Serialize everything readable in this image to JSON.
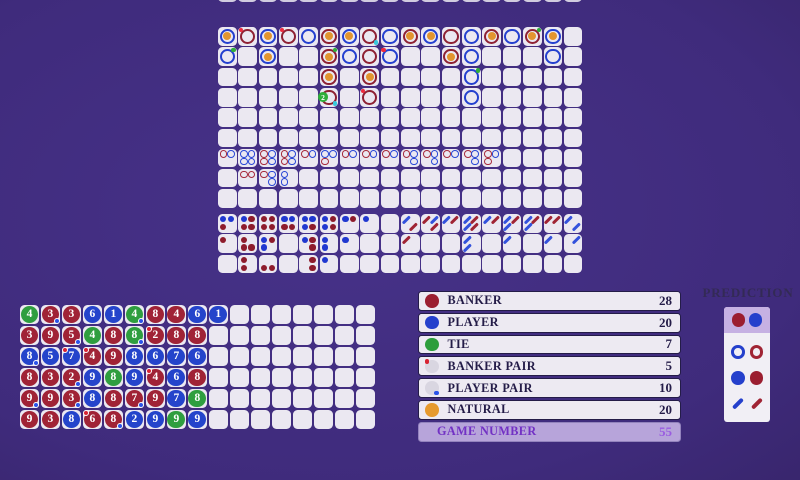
{
  "colors": {
    "roadRed": "#8e2133",
    "roadBlue": "#2440cf",
    "natural": "#e2952f",
    "derivedRed": "#a62a3c",
    "derivedBlue": "#2947d6",
    "dotRed": "#8e1c2c",
    "dotBlue": "#2038d0",
    "slashRed": "#a02434",
    "slashBlue": "#3352dc",
    "pairRed": "#ee2b3e",
    "pairCyan": "#38c9dc",
    "tieGreen": "#2fae3a",
    "beadRed": "#a02336",
    "beadBlue": "#2444cb",
    "beadGreen": "#2f9e3f",
    "statBanker": "#9b1e30",
    "statPlayer": "#2540cc",
    "statTie": "#2d9e3c",
    "statNatural": "#e69a2e",
    "statPairBg": "#d9d6e1",
    "pairMiniRed": "#d82333",
    "pairMiniBlue": "#2a52e8"
  },
  "big_road": [
    [
      "Bn",
      "Rb",
      "Bn",
      "Rb",
      "B",
      "Rn",
      "Bn",
      "Rp",
      "B",
      "Rn",
      "Bn",
      "R",
      "B",
      "Rn",
      "B",
      "Rnt",
      "Bn",
      ""
    ],
    [
      "Bt",
      "",
      "Bn",
      "",
      "",
      "Rnt",
      "B",
      "R",
      "Bb",
      "",
      "",
      "Rn",
      "B",
      "",
      "",
      "",
      "B",
      ""
    ],
    [
      "",
      "",
      "",
      "",
      "",
      "Rn",
      "",
      "Rn",
      "",
      "",
      "",
      "",
      "Bt",
      "",
      "",
      "",
      "",
      ""
    ],
    [
      "",
      "",
      "",
      "",
      "",
      "R2p",
      "",
      "Rb",
      "",
      "",
      "",
      "",
      "B",
      "",
      "",
      "",
      "",
      ""
    ],
    [
      "",
      "",
      "",
      "",
      "",
      "",
      "",
      "",
      "",
      "",
      "",
      "",
      "",
      "",
      "",
      "",
      "",
      ""
    ],
    [
      "",
      "",
      "",
      "",
      "",
      "",
      "",
      "",
      "",
      "",
      "",
      "",
      "",
      "",
      "",
      "",
      "",
      ""
    ]
  ],
  "big_eye_road": [
    [
      "RB--",
      "BBBB",
      "RBRB",
      "RBRB",
      "RB--",
      "BBR-",
      "RB--",
      "RB--",
      "RB--",
      "RB-B",
      "RB-B",
      "RB--",
      "RB-B",
      "RBR-",
      "",
      "",
      "",
      ""
    ],
    [
      "",
      "RR--",
      "RB-B",
      "B-B-",
      "",
      "",
      "",
      "",
      "",
      "",
      "",
      "",
      "",
      "",
      "",
      "",
      "",
      ""
    ],
    [
      "",
      "",
      "",
      "",
      "",
      "",
      "",
      "",
      "",
      "",
      "",
      "",
      "",
      "",
      "",
      "",
      "",
      ""
    ]
  ],
  "small_road": [
    [
      "BBR-",
      "BRRR",
      "RRRR",
      "BBRR",
      "BBBR",
      "BRBR",
      "BR--",
      "B---",
      "",
      "",
      "",
      "",
      "",
      "",
      "",
      "",
      "",
      ""
    ],
    [
      "R---",
      "R-RR",
      "BRB-",
      "",
      "BR-R",
      "B-B-",
      "B---",
      "",
      "",
      "",
      "",
      "",
      "",
      "",
      "",
      "",
      "",
      ""
    ],
    [
      "",
      "R-R-",
      "--RR",
      "",
      "-R-R",
      "B---",
      "",
      "",
      "",
      "",
      "",
      "",
      "",
      "",
      "",
      "",
      "",
      ""
    ]
  ],
  "cockroach_road": [
    [
      "",
      "",
      "",
      "",
      "",
      "",
      "",
      "",
      "",
      "B--R",
      "RB-R",
      "BR--",
      "BRBR",
      "BR--",
      "BRB-",
      "BRB-",
      "RR--",
      "B--B"
    ],
    [
      "",
      "",
      "",
      "",
      "",
      "",
      "",
      "",
      "",
      "R---",
      "",
      "",
      "B-B-",
      "",
      "B---",
      "",
      "B---",
      "-B--"
    ],
    [
      "",
      "",
      "",
      "",
      "",
      "",
      "",
      "",
      "",
      "",
      "",
      "",
      "",
      "",
      "",
      "",
      "",
      ""
    ]
  ],
  "bead_plate": [
    [
      "G4",
      "R3p",
      "R3",
      "B6",
      "B1",
      "G4p",
      "R8",
      "R4",
      "B6",
      "B1",
      "",
      "",
      "",
      "",
      "",
      "",
      ""
    ],
    [
      "R3",
      "R9",
      "R5p",
      "G4",
      "R8",
      "G8p",
      "R2b",
      "R8",
      "R8",
      "",
      "",
      "",
      "",
      "",
      "",
      "",
      ""
    ],
    [
      "B8p",
      "B5",
      "B7b",
      "R4b",
      "R9",
      "B8",
      "B6",
      "B7",
      "B6",
      "",
      "",
      "",
      "",
      "",
      "",
      "",
      ""
    ],
    [
      "R8",
      "R3",
      "R2p",
      "B9",
      "G8",
      "B9",
      "R4b",
      "B6",
      "R8",
      "",
      "",
      "",
      "",
      "",
      "",
      "",
      ""
    ],
    [
      "R9p",
      "R9",
      "R3p",
      "B8",
      "R8",
      "R7p",
      "R9",
      "B7",
      "G8",
      "",
      "",
      "",
      "",
      "",
      "",
      "",
      ""
    ],
    [
      "R9",
      "R3",
      "B8",
      "R6b",
      "R8p",
      "B2",
      "B9",
      "G9",
      "B9",
      "",
      "",
      "",
      "",
      "",
      "",
      "",
      ""
    ]
  ],
  "stats": {
    "rows": [
      {
        "icon": "banker-icon",
        "label": "BANKER",
        "value": "28"
      },
      {
        "icon": "player-icon",
        "label": "PLAYER",
        "value": "20"
      },
      {
        "icon": "tie-icon",
        "label": "TIE",
        "value": "7"
      },
      {
        "icon": "banker-pair-icon",
        "label": "BANKER PAIR",
        "value": "5"
      },
      {
        "icon": "player-pair-icon",
        "label": "PLAYER PAIR",
        "value": "10"
      },
      {
        "icon": "natural-icon",
        "label": "NATURAL",
        "value": "20"
      }
    ],
    "game_number": {
      "label": "GAME NUMBER",
      "value": "55"
    }
  },
  "prediction": {
    "title": "PREDICTION",
    "header": [
      "red-solid",
      "blue-solid"
    ],
    "rows": [
      [
        "blue-ring",
        "red-ring"
      ],
      [
        "blue-solid",
        "red-solid"
      ],
      [
        "blue-slash",
        "red-slash"
      ]
    ]
  }
}
